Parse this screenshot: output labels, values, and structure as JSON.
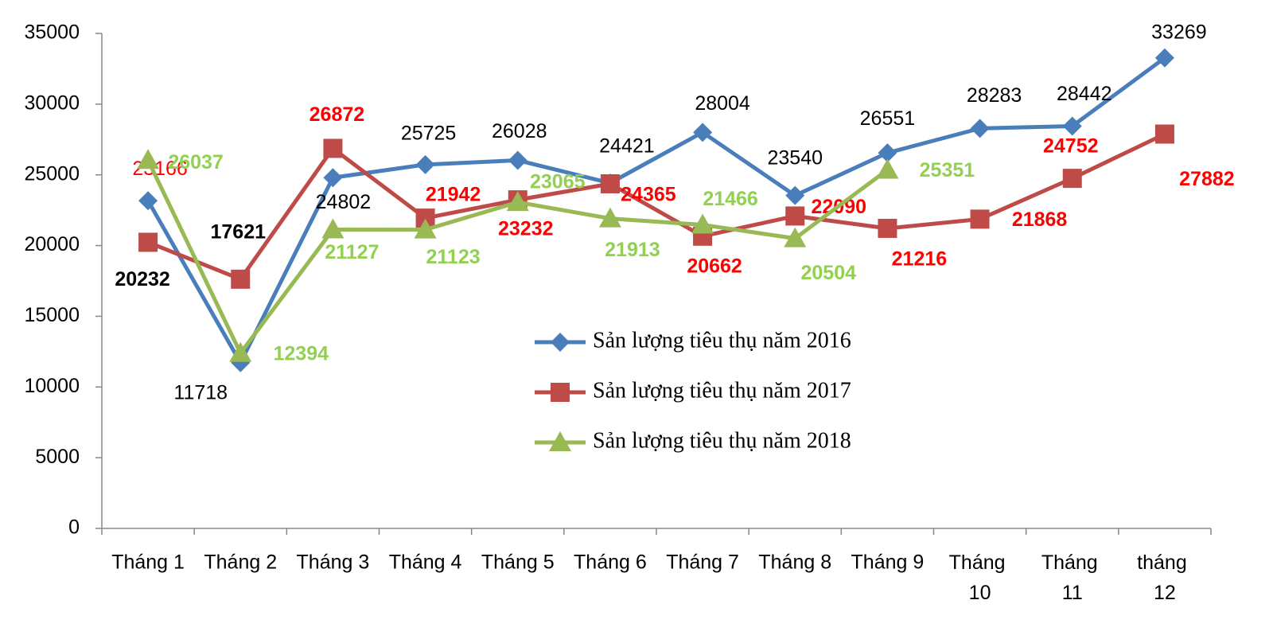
{
  "chart_data": {
    "type": "line",
    "categories": [
      "Tháng 1",
      "Tháng 2",
      "Tháng 3",
      "Tháng 4",
      "Tháng 5",
      "Tháng 6",
      "Tháng 7",
      "Tháng 8",
      "Tháng 9",
      "Tháng 10",
      "Tháng 11",
      "tháng 12"
    ],
    "series": [
      {
        "name": "Sản lượng tiêu thụ năm 2016",
        "color": "#4a7ebb",
        "marker": "diamond",
        "label_bold": false,
        "values": [
          23166,
          11718,
          24802,
          25725,
          26028,
          24421,
          28004,
          23540,
          26551,
          28283,
          28442,
          33269
        ],
        "label_colors": [
          "#ff0000",
          "#000000",
          "#000000",
          "#000000",
          "#000000",
          "#000000",
          "#000000",
          "#000000",
          "#000000",
          "#000000",
          "#000000",
          "#000000"
        ]
      },
      {
        "name": "Sản lượng tiêu thụ năm 2017",
        "color": "#be4b48",
        "marker": "square",
        "label_bold": true,
        "values": [
          20232,
          17621,
          26872,
          21942,
          23232,
          24365,
          20662,
          22090,
          21216,
          21868,
          24752,
          27882
        ],
        "label_colors": [
          "#000000",
          "#000000",
          "#ff0000",
          "#ff0000",
          "#ff0000",
          "#ff0000",
          "#ff0000",
          "#ff0000",
          "#ff0000",
          "#ff0000",
          "#ff0000",
          "#ff0000"
        ]
      },
      {
        "name": "Sản lượng tiêu thụ năm 2018",
        "color": "#98b954",
        "marker": "triangle",
        "label_bold": true,
        "values": [
          26037,
          12394,
          21127,
          21123,
          23065,
          21913,
          21466,
          20504,
          25351,
          null,
          null,
          null
        ],
        "label_colors": [
          "#92d050",
          "#92d050",
          "#92d050",
          "#92d050",
          "#92d050",
          "#92d050",
          "#92d050",
          "#92d050",
          "#92d050",
          null,
          null,
          null
        ]
      }
    ],
    "ylim": [
      0,
      35000
    ],
    "yticks": [
      0,
      5000,
      10000,
      15000,
      20000,
      25000,
      30000,
      35000
    ]
  }
}
